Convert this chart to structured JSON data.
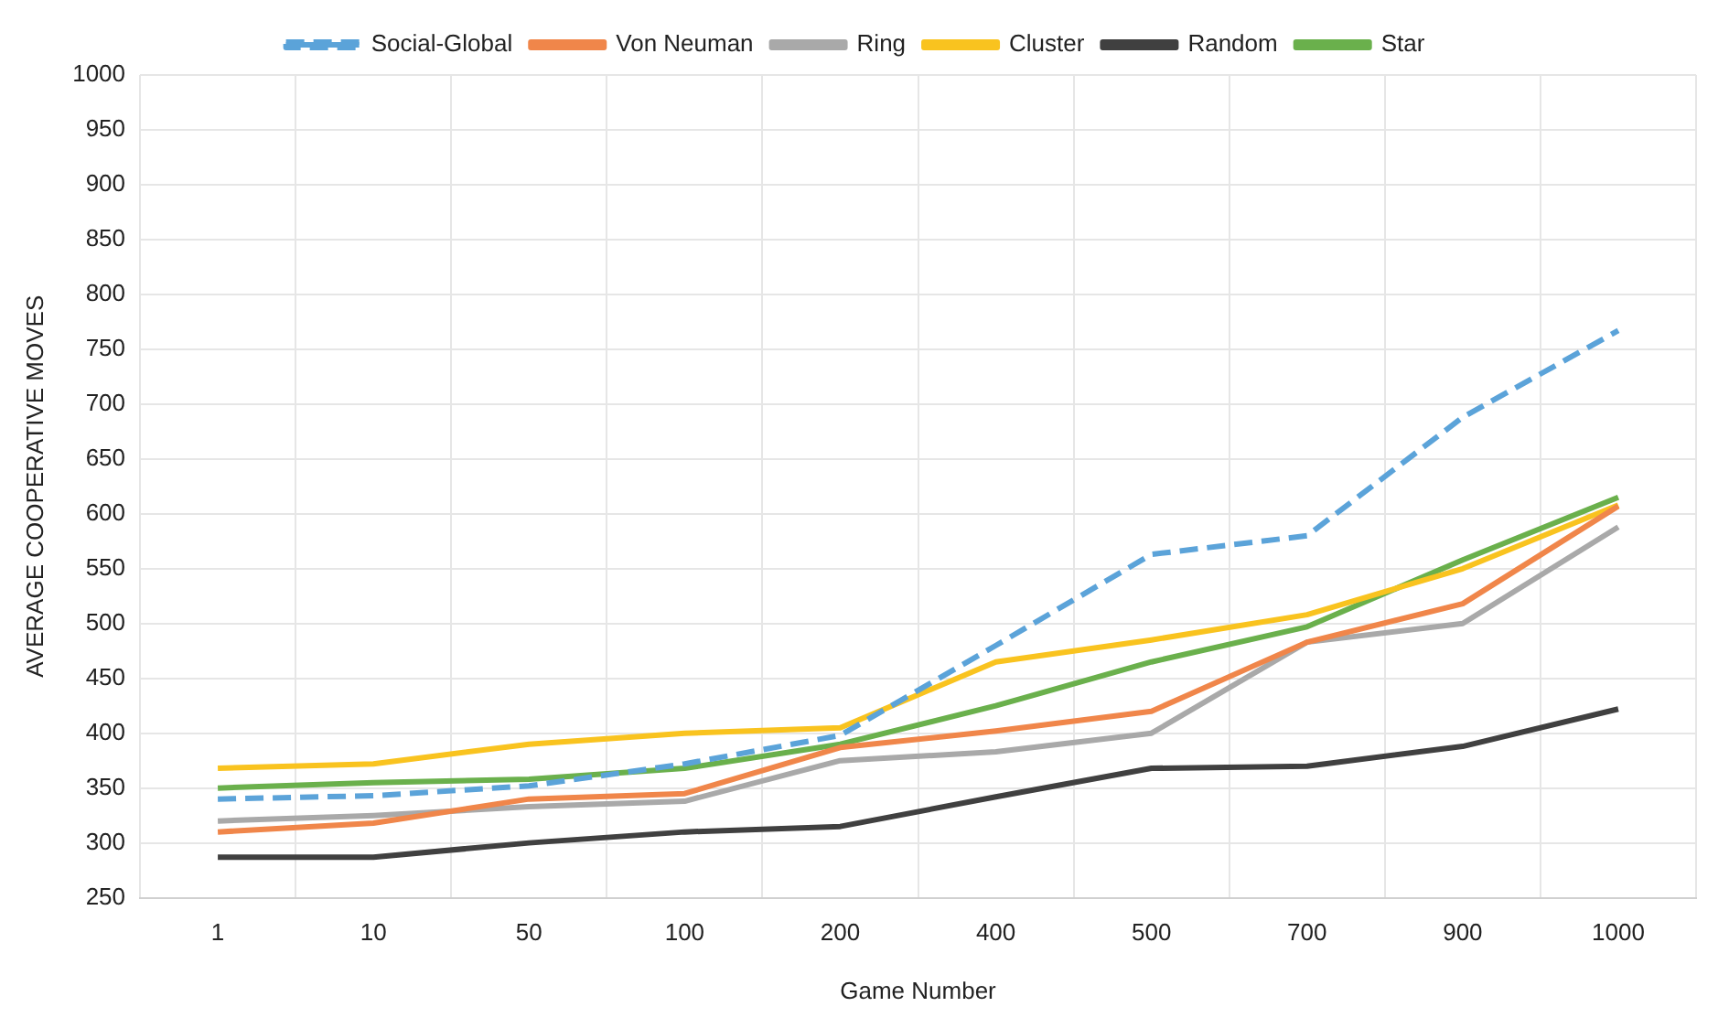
{
  "chart_data": {
    "type": "line",
    "xlabel": "Game Number",
    "ylabel": "AVERAGE COOPERATIVE MOVES",
    "categories": [
      "1",
      "10",
      "50",
      "100",
      "200",
      "400",
      "500",
      "700",
      "900",
      "1000"
    ],
    "ylim": [
      250,
      1000
    ],
    "yticks": [
      250,
      300,
      350,
      400,
      450,
      500,
      550,
      600,
      650,
      700,
      750,
      800,
      850,
      900,
      950,
      1000
    ],
    "grid": true,
    "legend": "top",
    "marker": "none",
    "series": [
      {
        "name": "Social-Global",
        "color": "#5ba3d9",
        "line_style": "dashed",
        "values": [
          340,
          343,
          352,
          372,
          398,
          480,
          563,
          580,
          688,
          767
        ]
      },
      {
        "name": "Von Neuman",
        "color": "#f0864a",
        "values": [
          310,
          318,
          340,
          345,
          387,
          402,
          420,
          483,
          518,
          607
        ]
      },
      {
        "name": "Ring",
        "color": "#a9a9a9",
        "values": [
          320,
          325,
          333,
          338,
          375,
          383,
          400,
          483,
          500,
          588
        ]
      },
      {
        "name": "Cluster",
        "color": "#f9c31f",
        "values": [
          368,
          372,
          390,
          400,
          405,
          465,
          485,
          508,
          550,
          608
        ]
      },
      {
        "name": "Random",
        "color": "#404040",
        "values": [
          287,
          287,
          300,
          310,
          315,
          342,
          368,
          370,
          388,
          422
        ]
      },
      {
        "name": "Star",
        "color": "#6ab04c",
        "values": [
          350,
          355,
          358,
          368,
          390,
          425,
          465,
          497,
          558,
          615
        ]
      }
    ]
  }
}
